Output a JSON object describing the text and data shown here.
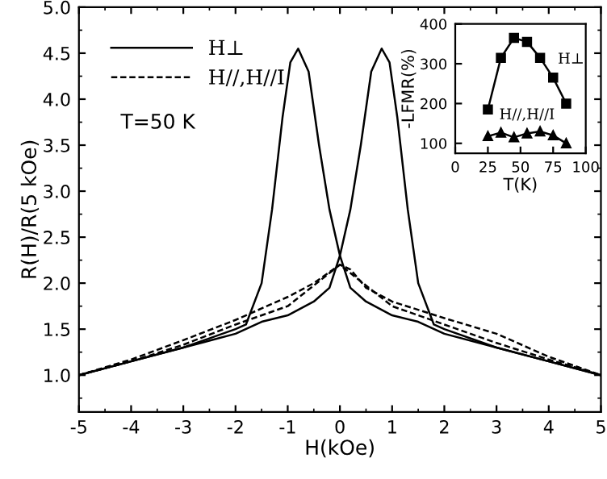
{
  "chart_data": [
    {
      "type": "line",
      "xlabel": "H(kOe)",
      "ylabel": "R(H)/R(5 kOe)",
      "xlim": [
        -5,
        5
      ],
      "ylim": [
        0.6,
        5.0
      ],
      "xticks": [
        -5,
        -4,
        -3,
        -2,
        -1,
        0,
        1,
        2,
        3,
        4,
        5
      ],
      "yticks": [
        {
          "value": 1,
          "label": "1.0"
        },
        {
          "value": 1.5,
          "label": "1.5"
        },
        {
          "value": 2,
          "label": "2.0"
        },
        {
          "value": 2.5,
          "label": "2.5"
        },
        {
          "value": 3,
          "label": "3.0"
        },
        {
          "value": 3.5,
          "label": "3.5"
        },
        {
          "value": 4,
          "label": "4.0"
        },
        {
          "value": 4.5,
          "label": "4.5"
        },
        {
          "value": 5,
          "label": "5.0"
        }
      ],
      "legend": "top left",
      "annotations": [
        {
          "text": "T=50 K"
        }
      ],
      "series": [
        {
          "name": "H⊥",
          "color": "#000000",
          "line_style": "solid",
          "x": [
            -5,
            -4,
            -3,
            -2,
            -1.8,
            -1.5,
            -1.3,
            -1.1,
            -0.95,
            -0.8,
            -0.6,
            -0.4,
            -0.2,
            0,
            0.2,
            0.5,
            1,
            1.5,
            2,
            3,
            4,
            5
          ],
          "values": [
            1.0,
            1.15,
            1.3,
            1.5,
            1.55,
            2.0,
            2.8,
            3.8,
            4.4,
            4.55,
            4.3,
            3.5,
            2.8,
            2.3,
            1.95,
            1.8,
            1.65,
            1.58,
            1.45,
            1.3,
            1.15,
            1.0
          ]
        },
        {
          "color": "#000000",
          "line_style": "solid",
          "x": [
            -5,
            -4,
            -3,
            -2,
            -1.5,
            -1,
            -0.5,
            -0.2,
            0,
            0.2,
            0.4,
            0.6,
            0.8,
            0.95,
            1.1,
            1.3,
            1.5,
            1.8,
            2,
            3,
            4,
            5
          ],
          "values": [
            1.0,
            1.15,
            1.3,
            1.45,
            1.58,
            1.65,
            1.8,
            1.95,
            2.3,
            2.8,
            3.5,
            4.3,
            4.55,
            4.4,
            3.8,
            2.8,
            2.0,
            1.55,
            1.5,
            1.3,
            1.15,
            1.0
          ]
        },
        {
          "name": "H//,H//I",
          "color": "#000000",
          "line_style": "dashed",
          "x": [
            -5,
            -4,
            -3,
            -2,
            -1,
            -0.5,
            0,
            0.2,
            0.5,
            1,
            2,
            3,
            4,
            5
          ],
          "values": [
            1.0,
            1.17,
            1.38,
            1.6,
            1.85,
            2.0,
            2.2,
            2.15,
            1.95,
            1.8,
            1.62,
            1.45,
            1.2,
            1.0
          ]
        },
        {
          "color": "#000000",
          "line_style": "dashed",
          "x": [
            -5,
            -4,
            -3,
            -2,
            -1,
            0,
            1,
            2,
            3,
            4,
            5
          ],
          "values": [
            1.0,
            1.15,
            1.33,
            1.55,
            1.75,
            2.2,
            1.75,
            1.55,
            1.35,
            1.17,
            1.0
          ]
        }
      ]
    },
    {
      "type": "line",
      "xlabel": "T(K)",
      "ylabel": "-LFMR(%)",
      "xlim": [
        0,
        100
      ],
      "ylim": [
        75,
        400
      ],
      "xticks": [
        0,
        25,
        50,
        75,
        100
      ],
      "yticks": [
        100,
        200,
        300,
        400
      ],
      "series": [
        {
          "name": "H⊥",
          "color": "#000000",
          "marker": "square",
          "x": [
            25,
            35,
            45,
            55,
            65,
            75,
            85
          ],
          "values": [
            185,
            315,
            365,
            355,
            315,
            265,
            200
          ]
        },
        {
          "name": "H//,H//I",
          "color": "#000000",
          "marker": "triangle",
          "x": [
            25,
            35,
            45,
            55,
            65,
            75,
            85
          ],
          "values": [
            118,
            127,
            115,
            125,
            130,
            120,
            100
          ]
        }
      ]
    }
  ]
}
